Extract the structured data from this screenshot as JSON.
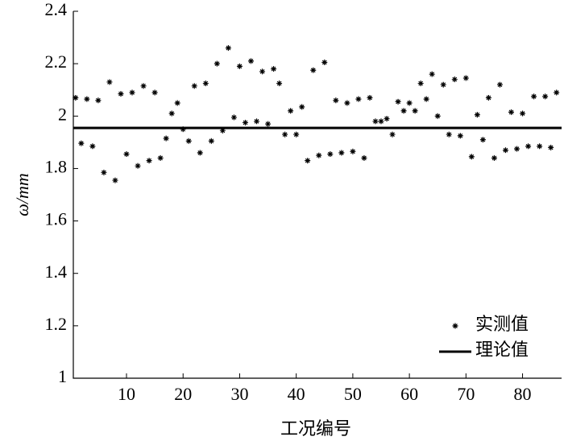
{
  "chart_data": {
    "type": "scatter",
    "x_label": "工况编号",
    "y_label": "ω/mm",
    "xlim": [
      0.6,
      86.9
    ],
    "xticks": [
      10,
      20,
      30,
      40,
      50,
      60,
      70,
      80
    ],
    "ylim": [
      1,
      2.4
    ],
    "yticks": [
      1,
      1.2,
      1.4,
      1.6,
      1.8,
      2,
      2.2,
      2.4
    ],
    "legend": "lower right",
    "series": [
      {
        "name": "实测值",
        "color": "#000000",
        "marker": "asterisk",
        "x": [
          1,
          2,
          3,
          4,
          5,
          6,
          7,
          8,
          9,
          10,
          11,
          12,
          13,
          14,
          15,
          16,
          17,
          18,
          19,
          20,
          21,
          22,
          23,
          24,
          25,
          26,
          27,
          28,
          29,
          30,
          31,
          32,
          33,
          34,
          35,
          36,
          37,
          38,
          39,
          40,
          41,
          42,
          43,
          44,
          45,
          46,
          47,
          48,
          49,
          50,
          51,
          52,
          53,
          54,
          55,
          56,
          57,
          58,
          59,
          60,
          61,
          62,
          63,
          64,
          65,
          66,
          67,
          68,
          69,
          70,
          71,
          72,
          73,
          74,
          75,
          76,
          77,
          78,
          79,
          80,
          81,
          82,
          83,
          84,
          85,
          86
        ],
        "values": [
          2.07,
          1.896,
          2.065,
          1.885,
          2.06,
          1.785,
          2.13,
          1.755,
          2.085,
          1.855,
          2.09,
          1.81,
          2.115,
          1.83,
          2.09,
          1.84,
          1.915,
          2.01,
          2.05,
          1.95,
          1.905,
          2.115,
          1.86,
          2.125,
          1.905,
          2.2,
          1.945,
          2.26,
          1.995,
          2.19,
          1.975,
          2.21,
          1.98,
          2.17,
          1.97,
          2.18,
          2.125,
          1.93,
          2.02,
          1.93,
          2.035,
          1.83,
          2.175,
          1.85,
          2.205,
          1.855,
          2.06,
          1.86,
          2.05,
          1.865,
          2.065,
          1.84,
          2.07,
          1.98,
          1.98,
          1.99,
          1.93,
          2.055,
          2.02,
          2.05,
          2.02,
          2.125,
          2.065,
          2.16,
          2.0,
          2.12,
          1.93,
          2.14,
          1.925,
          2.145,
          1.845,
          2.005,
          1.91,
          2.07,
          1.84,
          2.12,
          1.87,
          2.015,
          1.875,
          2.01,
          1.885,
          2.075,
          1.885,
          2.075,
          1.88,
          2.09
        ]
      },
      {
        "name": "理论值",
        "color": "#000000",
        "marker": "line",
        "value": 1.955
      }
    ]
  }
}
